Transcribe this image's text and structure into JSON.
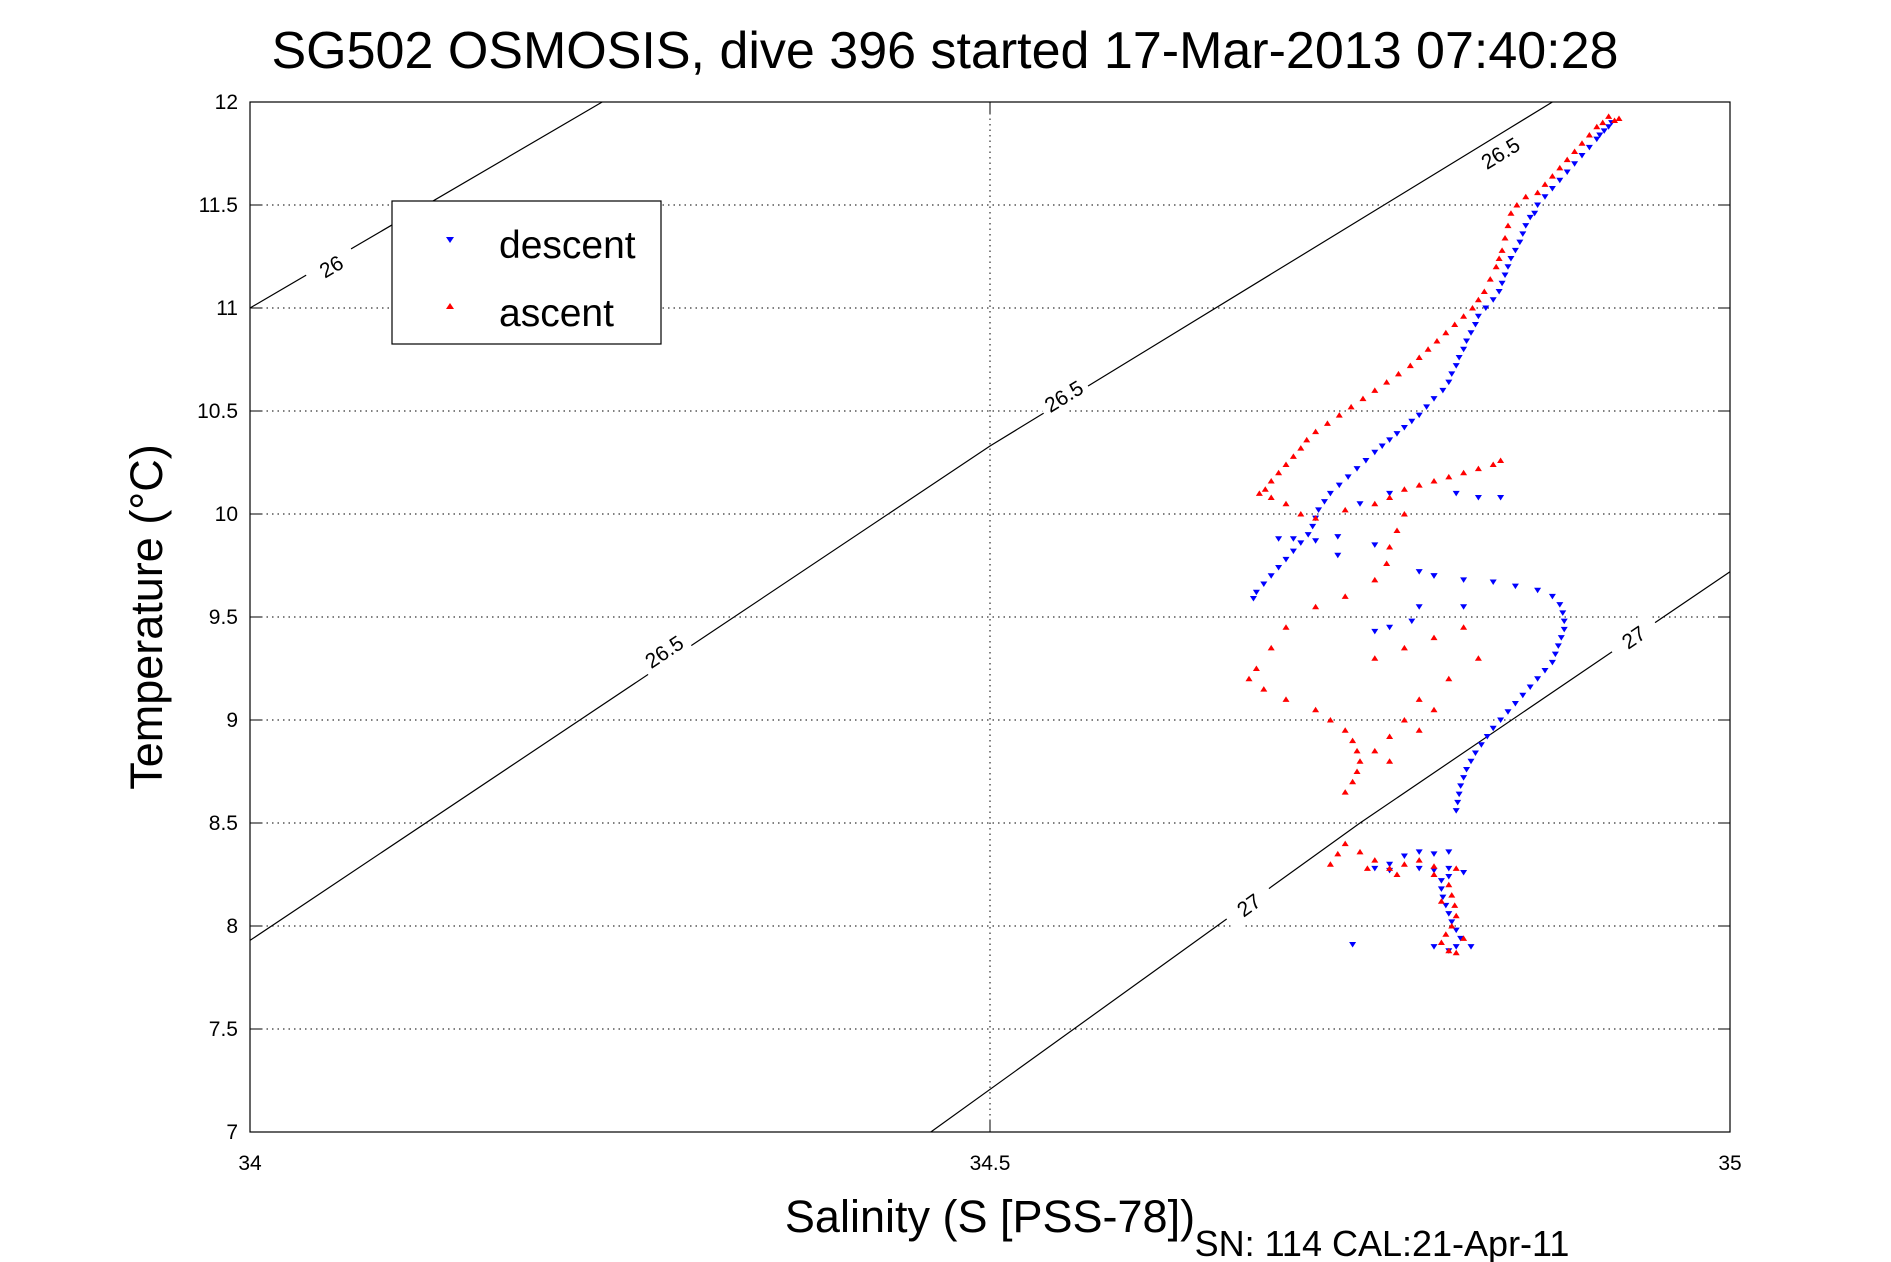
{
  "chart_data": {
    "type": "scatter",
    "title": "SG502 OSMOSIS, dive 396 started 17-Mar-2013 07:40:28",
    "xlabel": "Salinity (S [PSS-78])",
    "ylabel": "Temperature (°C)",
    "footer": "SN: 114  CAL:21-Apr-11",
    "xlim": [
      34,
      35
    ],
    "ylim": [
      7,
      12
    ],
    "xticks": [
      "34",
      "34.5",
      "35"
    ],
    "yticks": [
      "7",
      "7.5",
      "8",
      "8.5",
      "9",
      "9.5",
      "10",
      "10.5",
      "11",
      "11.5",
      "12"
    ],
    "grid": true,
    "legend_position": "top-left",
    "colors": {
      "descent": "#0000ff",
      "ascent": "#ff0000",
      "contour": "#000000"
    },
    "density_contours": [
      {
        "label": "26",
        "points": [
          [
            34.0,
            11.0
          ],
          [
            34.238,
            12.0
          ]
        ],
        "label_positions": [
          [
            34.055,
            11.2
          ]
        ]
      },
      {
        "label": "26.5",
        "points": [
          [
            34.0,
            7.93
          ],
          [
            34.5,
            10.33
          ],
          [
            34.88,
            12.0
          ]
        ],
        "label_positions": [
          [
            34.28,
            9.33
          ],
          [
            34.55,
            10.57
          ],
          [
            34.845,
            11.75
          ]
        ]
      },
      {
        "label": "27",
        "points": [
          [
            34.46,
            7.0
          ],
          [
            34.75,
            8.5
          ],
          [
            35.0,
            9.72
          ]
        ],
        "label_positions": [
          [
            34.675,
            8.1
          ],
          [
            34.935,
            9.4
          ]
        ]
      }
    ],
    "series": [
      {
        "name": "descent",
        "marker": "triangle-down",
        "points": [
          [
            34.92,
            11.9
          ],
          [
            34.918,
            11.88
          ],
          [
            34.915,
            11.86
          ],
          [
            34.912,
            11.84
          ],
          [
            34.91,
            11.82
          ],
          [
            34.905,
            11.78
          ],
          [
            34.9,
            11.74
          ],
          [
            34.895,
            11.7
          ],
          [
            34.89,
            11.66
          ],
          [
            34.885,
            11.62
          ],
          [
            34.88,
            11.58
          ],
          [
            34.875,
            11.54
          ],
          [
            34.87,
            11.5
          ],
          [
            34.868,
            11.46
          ],
          [
            34.865,
            11.44
          ],
          [
            34.862,
            11.4
          ],
          [
            34.86,
            11.36
          ],
          [
            34.858,
            11.32
          ],
          [
            34.855,
            11.28
          ],
          [
            34.852,
            11.24
          ],
          [
            34.85,
            11.2
          ],
          [
            34.848,
            11.16
          ],
          [
            34.846,
            11.12
          ],
          [
            34.844,
            11.08
          ],
          [
            34.84,
            11.04
          ],
          [
            34.835,
            11.0
          ],
          [
            34.83,
            10.96
          ],
          [
            34.828,
            10.92
          ],
          [
            34.825,
            10.88
          ],
          [
            34.822,
            10.84
          ],
          [
            34.82,
            10.8
          ],
          [
            34.817,
            10.76
          ],
          [
            34.815,
            10.72
          ],
          [
            34.812,
            10.68
          ],
          [
            34.81,
            10.64
          ],
          [
            34.806,
            10.6
          ],
          [
            34.8,
            10.56
          ],
          [
            34.795,
            10.52
          ],
          [
            34.79,
            10.48
          ],
          [
            34.785,
            10.45
          ],
          [
            34.78,
            10.42
          ],
          [
            34.775,
            10.39
          ],
          [
            34.77,
            10.36
          ],
          [
            34.765,
            10.33
          ],
          [
            34.76,
            10.3
          ],
          [
            34.754,
            10.26
          ],
          [
            34.748,
            10.22
          ],
          [
            34.742,
            10.18
          ],
          [
            34.736,
            10.14
          ],
          [
            34.73,
            10.1
          ],
          [
            34.726,
            10.06
          ],
          [
            34.722,
            10.02
          ],
          [
            34.72,
            9.98
          ],
          [
            34.718,
            9.94
          ],
          [
            34.715,
            9.9
          ],
          [
            34.71,
            9.86
          ],
          [
            34.705,
            9.82
          ],
          [
            34.7,
            9.78
          ],
          [
            34.695,
            9.74
          ],
          [
            34.69,
            9.7
          ],
          [
            34.685,
            9.66
          ],
          [
            34.68,
            9.62
          ],
          [
            34.678,
            9.59
          ],
          [
            34.695,
            9.88
          ],
          [
            34.705,
            9.88
          ],
          [
            34.72,
            9.87
          ],
          [
            34.735,
            9.89
          ],
          [
            34.76,
            9.85
          ],
          [
            34.79,
            9.72
          ],
          [
            34.8,
            9.7
          ],
          [
            34.82,
            9.68
          ],
          [
            34.84,
            9.67
          ],
          [
            34.855,
            9.65
          ],
          [
            34.87,
            9.63
          ],
          [
            34.88,
            9.6
          ],
          [
            34.885,
            9.56
          ],
          [
            34.887,
            9.52
          ],
          [
            34.888,
            9.48
          ],
          [
            34.888,
            9.44
          ],
          [
            34.886,
            9.4
          ],
          [
            34.884,
            9.36
          ],
          [
            34.882,
            9.32
          ],
          [
            34.88,
            9.28
          ],
          [
            34.875,
            9.24
          ],
          [
            34.87,
            9.2
          ],
          [
            34.865,
            9.16
          ],
          [
            34.86,
            9.12
          ],
          [
            34.855,
            9.08
          ],
          [
            34.85,
            9.04
          ],
          [
            34.845,
            9.0
          ],
          [
            34.84,
            8.96
          ],
          [
            34.836,
            8.92
          ],
          [
            34.832,
            8.88
          ],
          [
            34.828,
            8.84
          ],
          [
            34.825,
            8.8
          ],
          [
            34.822,
            8.76
          ],
          [
            34.82,
            8.72
          ],
          [
            34.818,
            8.68
          ],
          [
            34.817,
            8.64
          ],
          [
            34.816,
            8.6
          ],
          [
            34.815,
            8.56
          ],
          [
            34.81,
            8.36
          ],
          [
            34.8,
            8.35
          ],
          [
            34.79,
            8.36
          ],
          [
            34.78,
            8.34
          ],
          [
            34.77,
            8.3
          ],
          [
            34.76,
            8.28
          ],
          [
            34.77,
            8.27
          ],
          [
            34.79,
            8.28
          ],
          [
            34.8,
            8.27
          ],
          [
            34.81,
            8.28
          ],
          [
            34.82,
            8.26
          ],
          [
            34.81,
            8.24
          ],
          [
            34.805,
            8.22
          ],
          [
            34.805,
            8.18
          ],
          [
            34.806,
            8.14
          ],
          [
            34.808,
            8.1
          ],
          [
            34.81,
            8.06
          ],
          [
            34.812,
            8.02
          ],
          [
            34.815,
            7.98
          ],
          [
            34.818,
            7.94
          ],
          [
            34.815,
            7.9
          ],
          [
            34.81,
            7.88
          ],
          [
            34.8,
            7.9
          ],
          [
            34.825,
            7.9
          ],
          [
            34.745,
            7.91
          ],
          [
            34.76,
            9.43
          ],
          [
            34.77,
            9.45
          ],
          [
            34.785,
            9.48
          ],
          [
            34.82,
            9.55
          ],
          [
            34.83,
            10.08
          ],
          [
            34.845,
            10.08
          ],
          [
            34.815,
            10.1
          ],
          [
            34.77,
            10.1
          ],
          [
            34.75,
            10.05
          ],
          [
            34.735,
            9.8
          ],
          [
            34.79,
            9.55
          ],
          [
            34.8,
            9.7
          ]
        ]
      },
      {
        "name": "ascent",
        "marker": "triangle-up",
        "points": [
          [
            34.925,
            11.92
          ],
          [
            34.922,
            11.91
          ],
          [
            34.918,
            11.93
          ],
          [
            34.914,
            11.9
          ],
          [
            34.91,
            11.88
          ],
          [
            34.905,
            11.84
          ],
          [
            34.9,
            11.8
          ],
          [
            34.895,
            11.76
          ],
          [
            34.89,
            11.72
          ],
          [
            34.885,
            11.68
          ],
          [
            34.88,
            11.64
          ],
          [
            34.875,
            11.6
          ],
          [
            34.87,
            11.56
          ],
          [
            34.862,
            11.54
          ],
          [
            34.856,
            11.5
          ],
          [
            34.852,
            11.46
          ],
          [
            34.85,
            11.4
          ],
          [
            34.848,
            11.34
          ],
          [
            34.846,
            11.28
          ],
          [
            34.844,
            11.24
          ],
          [
            34.842,
            11.2
          ],
          [
            34.838,
            11.14
          ],
          [
            34.834,
            11.08
          ],
          [
            34.83,
            11.04
          ],
          [
            34.826,
            11.0
          ],
          [
            34.82,
            10.96
          ],
          [
            34.814,
            10.92
          ],
          [
            34.808,
            10.88
          ],
          [
            34.802,
            10.84
          ],
          [
            34.796,
            10.8
          ],
          [
            34.79,
            10.76
          ],
          [
            34.784,
            10.72
          ],
          [
            34.776,
            10.68
          ],
          [
            34.768,
            10.64
          ],
          [
            34.76,
            10.6
          ],
          [
            34.752,
            10.56
          ],
          [
            34.744,
            10.52
          ],
          [
            34.736,
            10.48
          ],
          [
            34.728,
            10.44
          ],
          [
            34.72,
            10.4
          ],
          [
            34.714,
            10.36
          ],
          [
            34.71,
            10.32
          ],
          [
            34.705,
            10.28
          ],
          [
            34.7,
            10.24
          ],
          [
            34.695,
            10.2
          ],
          [
            34.69,
            10.16
          ],
          [
            34.686,
            10.12
          ],
          [
            34.682,
            10.1
          ],
          [
            34.69,
            10.08
          ],
          [
            34.7,
            10.05
          ],
          [
            34.71,
            10.0
          ],
          [
            34.72,
            9.98
          ],
          [
            34.74,
            10.02
          ],
          [
            34.76,
            10.05
          ],
          [
            34.77,
            10.08
          ],
          [
            34.78,
            10.12
          ],
          [
            34.79,
            10.14
          ],
          [
            34.8,
            10.16
          ],
          [
            34.81,
            10.18
          ],
          [
            34.82,
            10.2
          ],
          [
            34.83,
            10.22
          ],
          [
            34.84,
            10.24
          ],
          [
            34.845,
            10.26
          ],
          [
            34.78,
            10.0
          ],
          [
            34.775,
            9.92
          ],
          [
            34.77,
            9.84
          ],
          [
            34.768,
            9.76
          ],
          [
            34.76,
            9.68
          ],
          [
            34.74,
            9.6
          ],
          [
            34.72,
            9.55
          ],
          [
            34.7,
            9.45
          ],
          [
            34.69,
            9.35
          ],
          [
            34.68,
            9.25
          ],
          [
            34.675,
            9.2
          ],
          [
            34.685,
            9.15
          ],
          [
            34.7,
            9.1
          ],
          [
            34.72,
            9.05
          ],
          [
            34.73,
            9.0
          ],
          [
            34.74,
            8.95
          ],
          [
            34.745,
            8.9
          ],
          [
            34.748,
            8.85
          ],
          [
            34.75,
            8.8
          ],
          [
            34.748,
            8.75
          ],
          [
            34.745,
            8.7
          ],
          [
            34.74,
            8.65
          ],
          [
            34.76,
            9.3
          ],
          [
            34.78,
            9.35
          ],
          [
            34.8,
            9.4
          ],
          [
            34.82,
            9.45
          ],
          [
            34.83,
            9.3
          ],
          [
            34.81,
            9.2
          ],
          [
            34.79,
            9.1
          ],
          [
            34.78,
            9.0
          ],
          [
            34.77,
            8.92
          ],
          [
            34.76,
            8.85
          ],
          [
            34.77,
            8.8
          ],
          [
            34.79,
            8.95
          ],
          [
            34.8,
            9.05
          ],
          [
            34.73,
            8.3
          ],
          [
            34.735,
            8.35
          ],
          [
            34.74,
            8.4
          ],
          [
            34.75,
            8.36
          ],
          [
            34.76,
            8.32
          ],
          [
            34.77,
            8.28
          ],
          [
            34.78,
            8.3
          ],
          [
            34.79,
            8.32
          ],
          [
            34.8,
            8.29
          ],
          [
            34.81,
            8.2
          ],
          [
            34.812,
            8.15
          ],
          [
            34.814,
            8.1
          ],
          [
            34.815,
            8.05
          ],
          [
            34.812,
            8.0
          ],
          [
            34.808,
            7.96
          ],
          [
            34.805,
            7.92
          ],
          [
            34.81,
            7.88
          ],
          [
            34.815,
            7.87
          ],
          [
            34.82,
            7.94
          ],
          [
            34.805,
            8.12
          ],
          [
            34.8,
            8.25
          ],
          [
            34.815,
            8.28
          ],
          [
            34.775,
            8.25
          ],
          [
            34.755,
            8.28
          ]
        ]
      }
    ]
  }
}
